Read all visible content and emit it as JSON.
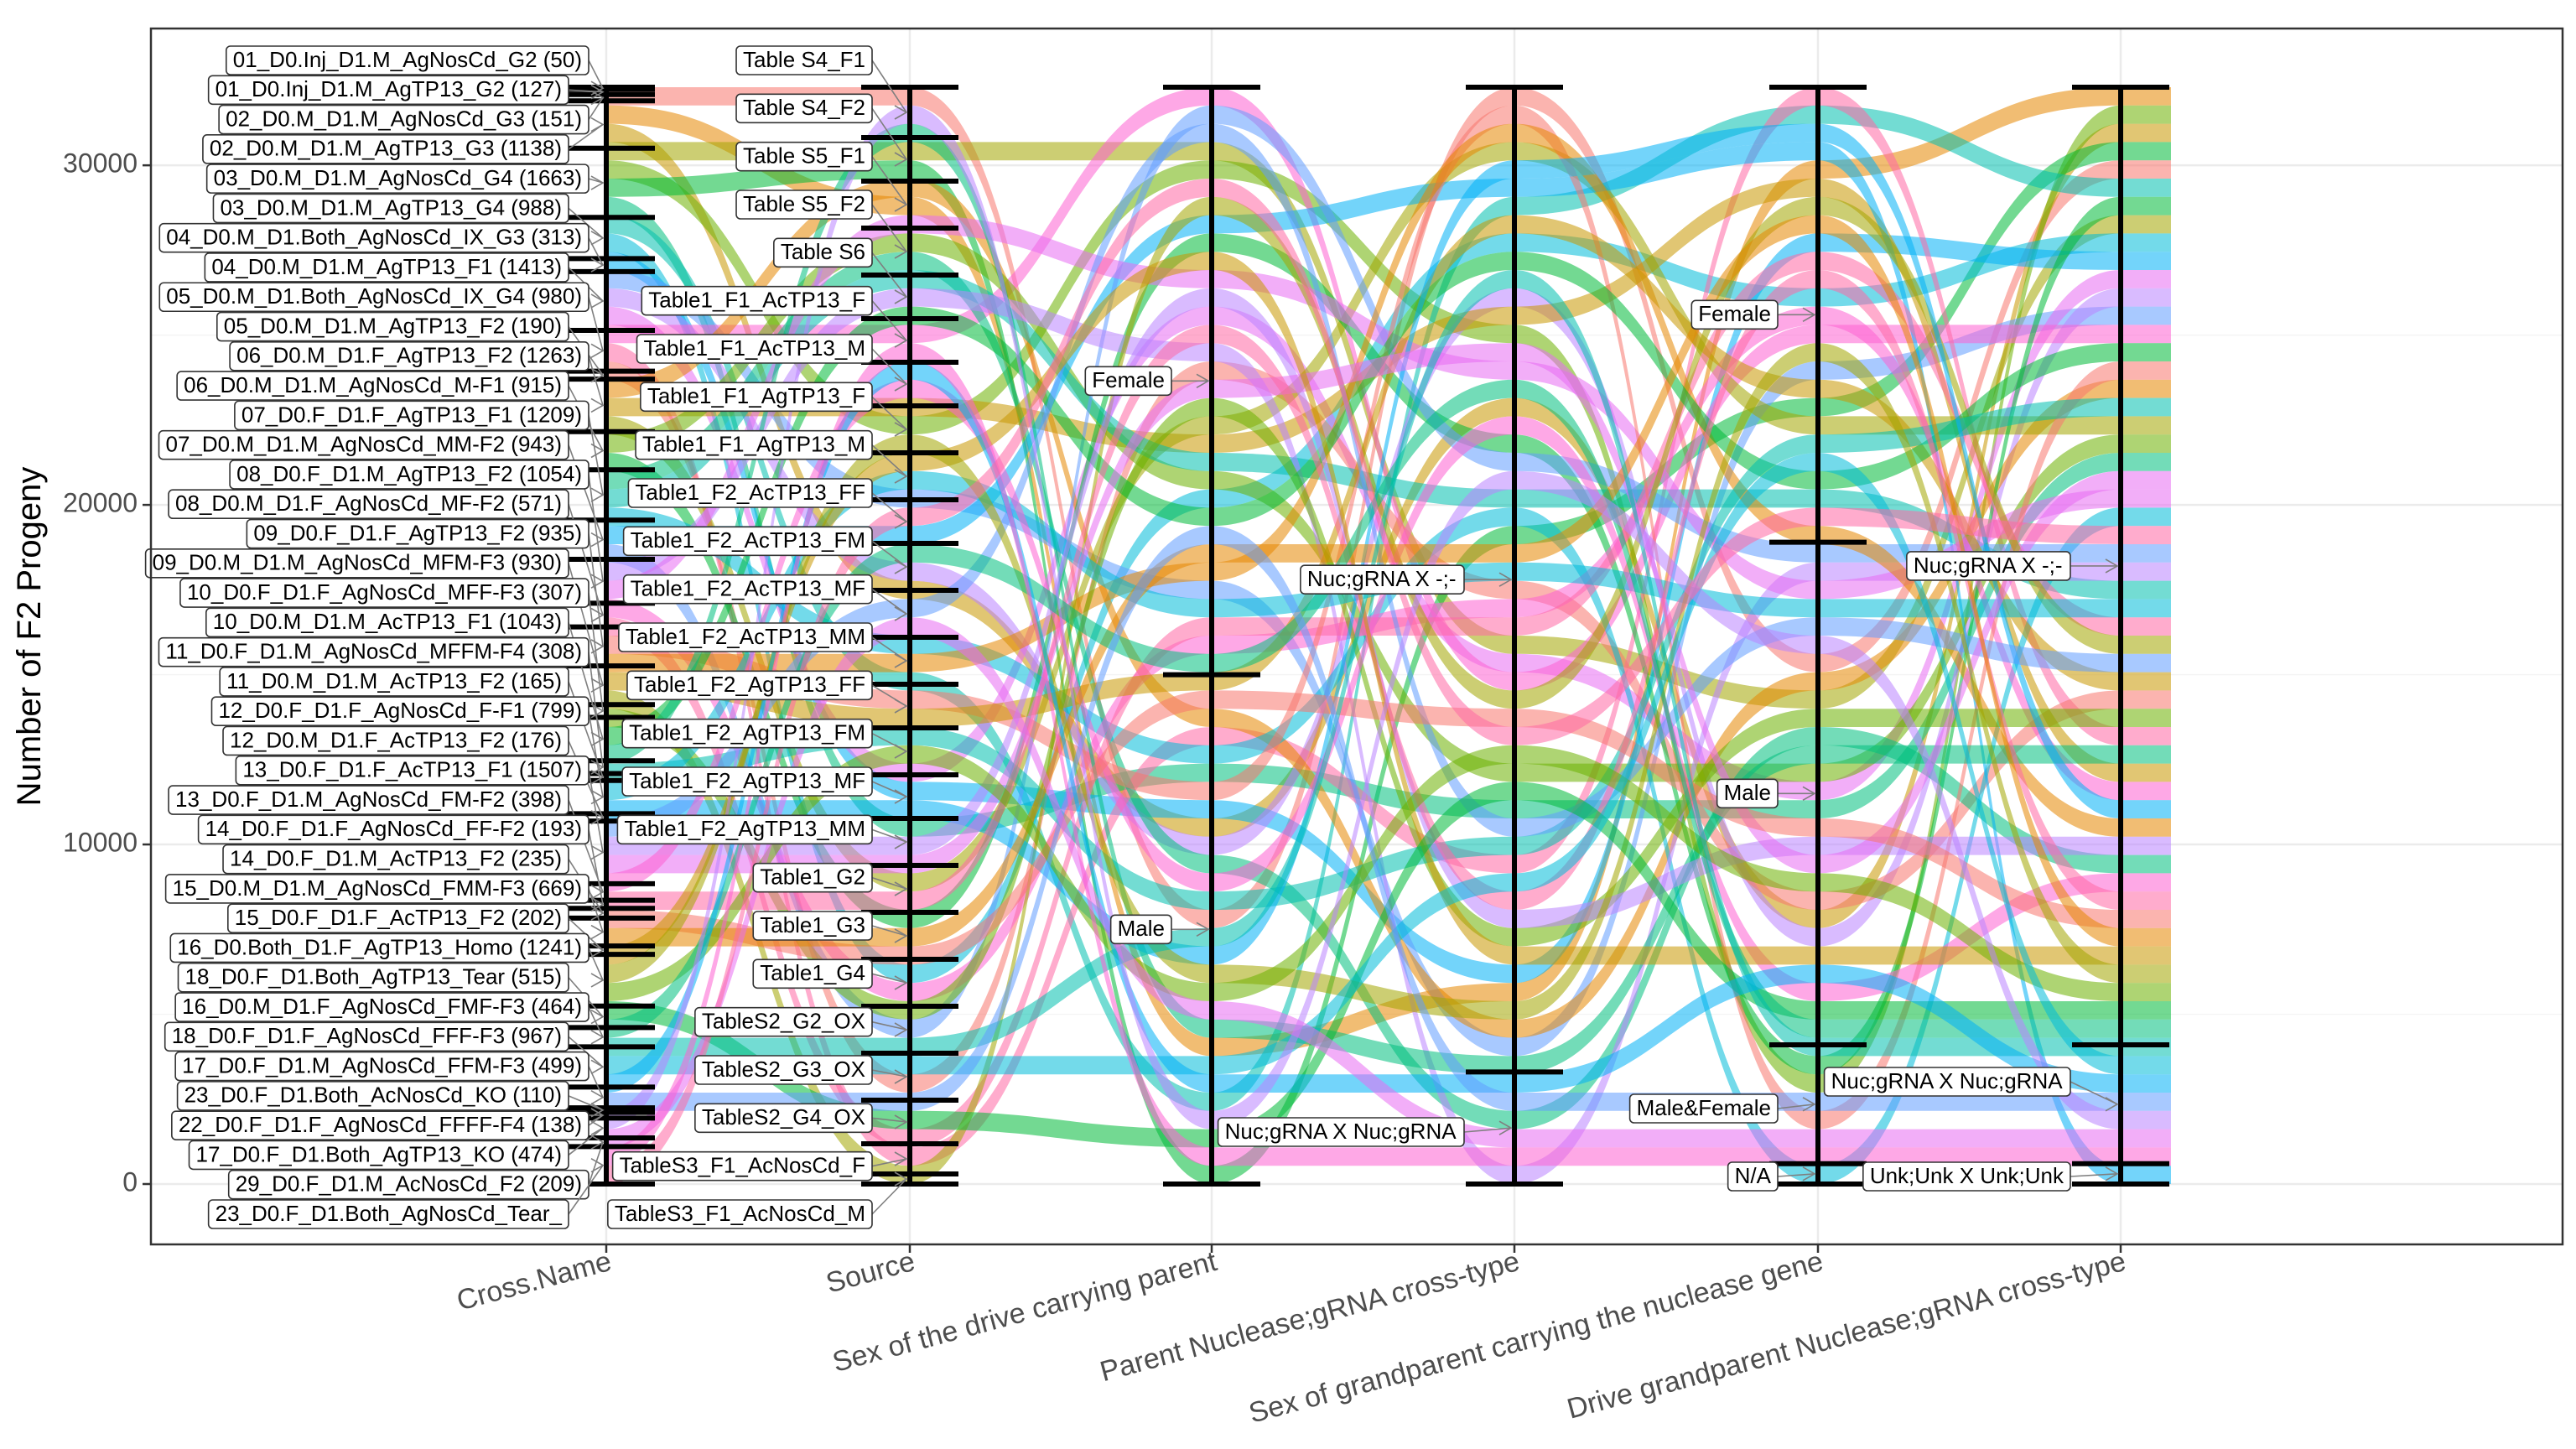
{
  "chart_data": {
    "type": "alluvial",
    "title": "",
    "xlabel": "",
    "ylabel": "Number of F2 Progeny",
    "ylim": [
      0,
      32300
    ],
    "yticks": [
      0,
      10000,
      20000,
      30000
    ],
    "grid": true,
    "axes": [
      "Cross.Name",
      "Source",
      "Sex of the drive carrying parent",
      "Parent Nuclease;gRNA cross-type",
      "Sex of grandparent carrying the nuclease gene",
      "Drive grandparent Nuclease;gRNA cross-type"
    ],
    "strata": {
      "cross_name": [
        {
          "label": "01_D0.Inj_D1.M_AgNosCd_G2 (50)",
          "value": 50
        },
        {
          "label": "01_D0.Inj_D1.M_AgTP13_G2 (127)",
          "value": 127
        },
        {
          "label": "02_D0.M_D1.M_AgNosCd_G3 (151)",
          "value": 151
        },
        {
          "label": "02_D0.M_D1.M_AgTP13_G3 (1138)",
          "value": 1138
        },
        {
          "label": "03_D0.M_D1.M_AgNosCd_G4 (1663)",
          "value": 1663
        },
        {
          "label": "03_D0.M_D1.M_AgTP13_G4 (988)",
          "value": 988
        },
        {
          "label": "04_D0.M_D1.Both_AgNosCd_IX_G3 (313)",
          "value": 313
        },
        {
          "label": "04_D0.M_D1.M_AgTP13_F1 (1413)",
          "value": 1413
        },
        {
          "label": "05_D0.M_D1.Both_AgNosCd_IX_G4 (980)",
          "value": 980
        },
        {
          "label": "05_D0.M_D1.M_AgTP13_F2 (190)",
          "value": 190
        },
        {
          "label": "06_D0.M_D1.F_AgTP13_F2 (1263)",
          "value": 1263
        },
        {
          "label": "06_D0.M_D1.M_AgNosCd_M-F1 (915)",
          "value": 915
        },
        {
          "label": "07_D0.F_D1.F_AgTP13_F1 (1209)",
          "value": 1209
        },
        {
          "label": "07_D0.M_D1.M_AgNosCd_MM-F2 (943)",
          "value": 943
        },
        {
          "label": "08_D0.F_D1.M_AgTP13_F2 (1054)",
          "value": 1054
        },
        {
          "label": "08_D0.M_D1.F_AgNosCd_MF-F2 (571)",
          "value": 571
        },
        {
          "label": "09_D0.F_D1.F_AgTP13_F2 (935)",
          "value": 935
        },
        {
          "label": "09_D0.M_D1.M_AgNosCd_MFM-F3 (930)",
          "value": 930
        },
        {
          "label": "10_D0.F_D1.F_AgNosCd_MFF-F3 (307)",
          "value": 307
        },
        {
          "label": "10_D0.M_D1.M_AcTP13_F1 (1043)",
          "value": 1043
        },
        {
          "label": "11_D0.F_D1.M_AgNosCd_MFFM-F4 (308)",
          "value": 308
        },
        {
          "label": "11_D0.M_D1.M_AcTP13_F2 (165)",
          "value": 165
        },
        {
          "label": "12_D0.F_D1.F_AgNosCd_F-F1 (799)",
          "value": 799
        },
        {
          "label": "12_D0.M_D1.F_AcTP13_F2 (176)",
          "value": 176
        },
        {
          "label": "13_D0.F_D1.F_AcTP13_F1 (1507)",
          "value": 1507
        },
        {
          "label": "13_D0.F_D1.M_AgNosCd_FM-F2 (398)",
          "value": 398
        },
        {
          "label": "14_D0.F_D1.F_AgNosCd_FF-F2 (193)",
          "value": 193
        },
        {
          "label": "14_D0.F_D1.M_AcTP13_F2 (235)",
          "value": 235
        },
        {
          "label": "15_D0.M_D1.M_AgNosCd_FMM-F3 (669)",
          "value": 669
        },
        {
          "label": "15_D0.F_D1.F_AcTP13_F2 (202)",
          "value": 202
        },
        {
          "label": "16_D0.Both_D1.F_AgTP13_Homo (1241)",
          "value": 1241
        },
        {
          "label": "18_D0.F_D1.Both_AgTP13_Tear (515)",
          "value": 515
        },
        {
          "label": "16_D0.M_D1.F_AgNosCd_FMF-F3 (464)",
          "value": 464
        },
        {
          "label": "18_D0.F_D1.F_AgNosCd_FFF-F3 (967)",
          "value": 967
        },
        {
          "label": "17_D0.F_D1.M_AgNosCd_FFM-F3 (499)",
          "value": 499
        },
        {
          "label": "23_D0.F_D1.Both_AcNosCd_KO (110)",
          "value": 110
        },
        {
          "label": "22_D0.F_D1.F_AgNosCd_FFFF-F4 (138)",
          "value": 138
        },
        {
          "label": "17_D0.F_D1.Both_AgTP13_KO (474)",
          "value": 474
        },
        {
          "label": "29_D0.F_D1.M_AcNosCd_F2 (209)",
          "value": 209
        },
        {
          "label": "23_D0.F_D1.Both_AgNosCd_Tear_",
          "value": 900
        }
      ],
      "source": [
        {
          "label": "Table S4_F1",
          "value": 1500
        },
        {
          "label": "Table S4_F2",
          "value": 1300
        },
        {
          "label": "Table S5_F1",
          "value": 1400
        },
        {
          "label": "Table S5_F2",
          "value": 1400
        },
        {
          "label": "Table S6",
          "value": 1300
        },
        {
          "label": "Table1_F1_AcTP13_F",
          "value": 1300
        },
        {
          "label": "Table1_F1_AcTP13_M",
          "value": 1300
        },
        {
          "label": "Table1_F1_AgTP13_F",
          "value": 1400
        },
        {
          "label": "Table1_F1_AgTP13_M",
          "value": 1400
        },
        {
          "label": "Table1_F2_AcTP13_FF",
          "value": 1300
        },
        {
          "label": "Table1_F2_AcTP13_FM",
          "value": 1400
        },
        {
          "label": "Table1_F2_AcTP13_MF",
          "value": 1400
        },
        {
          "label": "Table1_F2_AcTP13_MM",
          "value": 1400
        },
        {
          "label": "Table1_F2_AgTP13_FF",
          "value": 1300
        },
        {
          "label": "Table1_F2_AgTP13_FM",
          "value": 1400
        },
        {
          "label": "Table1_F2_AgTP13_MF",
          "value": 1300
        },
        {
          "label": "Table1_F2_AgTP13_MM",
          "value": 1400
        },
        {
          "label": "Table1_G2",
          "value": 1400
        },
        {
          "label": "Table1_G3",
          "value": 1400
        },
        {
          "label": "Table1_G4",
          "value": 1400
        },
        {
          "label": "TableS2_G2_OX",
          "value": 1400
        },
        {
          "label": "TableS2_G3_OX",
          "value": 1400
        },
        {
          "label": "TableS2_G4_OX",
          "value": 1300
        },
        {
          "label": "TableS3_F1_AcNosCd_F",
          "value": 900
        },
        {
          "label": "TableS3_F1_AcNosCd_M",
          "value": 300
        }
      ],
      "sex_drive_parent": [
        {
          "label": "Female",
          "value": 17300
        },
        {
          "label": "Male",
          "value": 15000
        }
      ],
      "parent_cross_type": [
        {
          "label": "Nuc;gRNA X -;-",
          "value": 29000
        },
        {
          "label": "Nuc;gRNA X Nuc;gRNA",
          "value": 3300
        }
      ],
      "sex_grandparent_nuclease": [
        {
          "label": "Female",
          "value": 13400
        },
        {
          "label": "Male",
          "value": 14800
        },
        {
          "label": "Male&Female",
          "value": 3500
        },
        {
          "label": "N/A",
          "value": 600
        }
      ],
      "drive_grandparent_cross_type": [
        {
          "label": "Nuc;gRNA X -;-",
          "value": 28200
        },
        {
          "label": "Nuc;gRNA X Nuc;gRNA",
          "value": 3500
        },
        {
          "label": "Unk;Unk X Unk;Unk",
          "value": 600
        }
      ]
    },
    "flow_colors": [
      "#f8766d",
      "#e58700",
      "#c99800",
      "#a3a500",
      "#6bb100",
      "#00ba38",
      "#00bf7d",
      "#00c0af",
      "#00bcd8",
      "#00b0f6",
      "#619cff",
      "#b983ff",
      "#e76bf3",
      "#fd61d1",
      "#ff67a4"
    ],
    "legend": "none"
  }
}
